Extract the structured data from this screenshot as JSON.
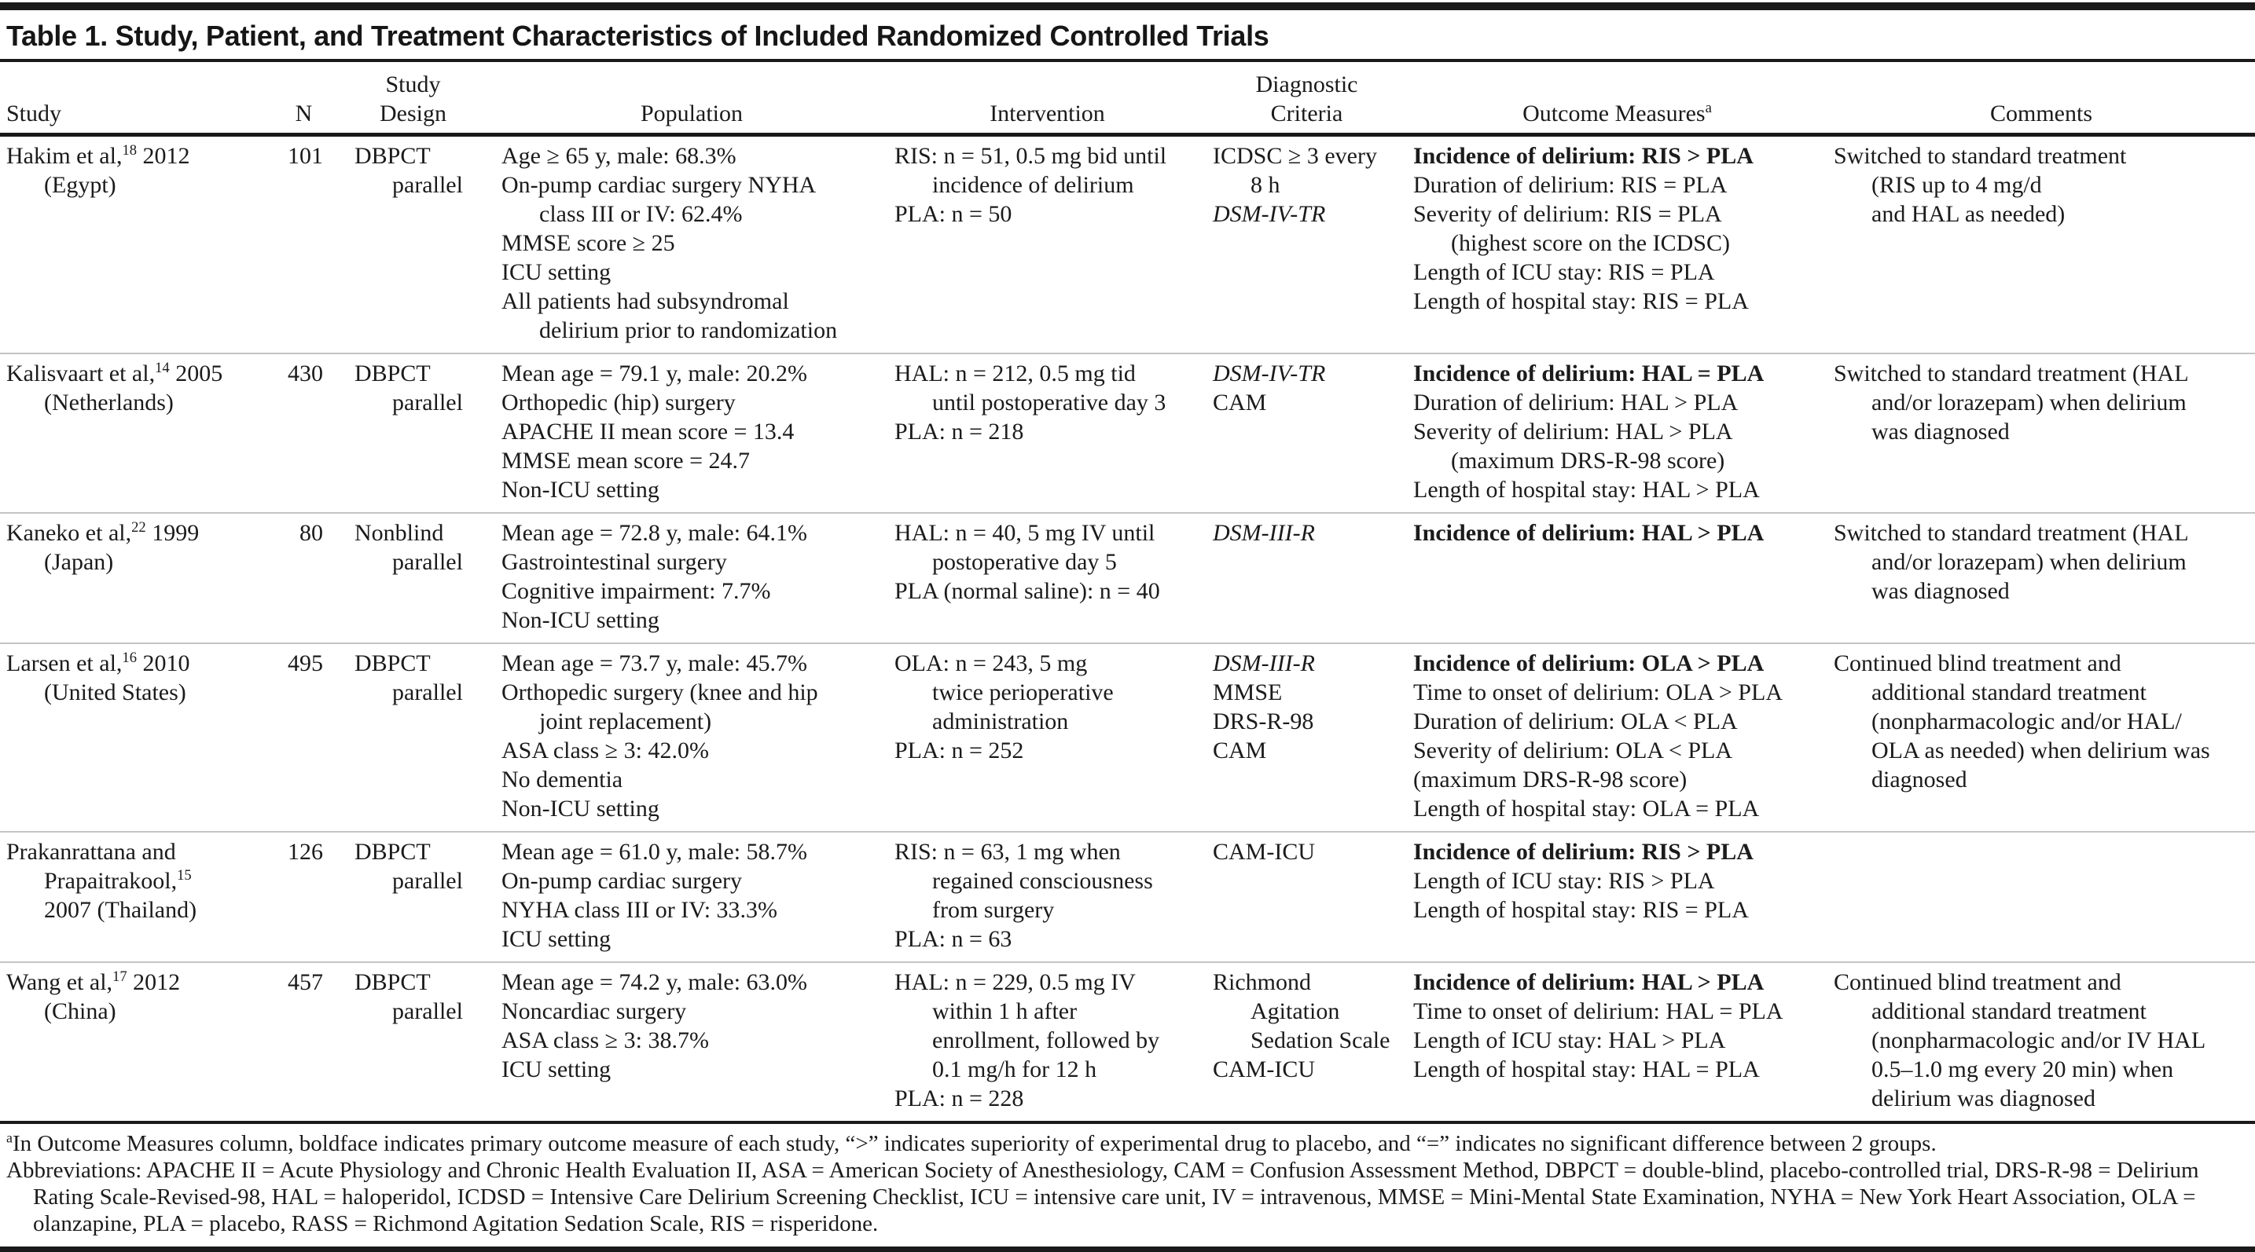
{
  "title": "Table 1. Study, Patient, and Treatment Characteristics of Included Randomized Controlled Trials",
  "headers": {
    "study": {
      "l2": "Study"
    },
    "n": {
      "l2": "N"
    },
    "design": {
      "l1": "Study",
      "l2": "Design"
    },
    "population": {
      "l2": "Population"
    },
    "intervention": {
      "l2": "Intervention"
    },
    "diagnostic": {
      "l1": "Diagnostic",
      "l2": "Criteria"
    },
    "outcomes": {
      "l2": "Outcome Measures^a^"
    },
    "comments": {
      "l2": "Comments"
    }
  },
  "rows": [
    {
      "study": [
        {
          "t": "Hakim et al,^18^ 2012",
          "i": 0
        },
        {
          "t": "(Egypt)",
          "i": 1
        }
      ],
      "n": "101",
      "design": [
        {
          "t": "DBPCT",
          "i": 0
        },
        {
          "t": "parallel",
          "i": 1
        }
      ],
      "population": [
        {
          "t": "Age ≥ 65 y, male: 68.3%",
          "i": 0
        },
        {
          "t": "On-pump cardiac surgery NYHA",
          "i": 0
        },
        {
          "t": "class III or IV: 62.4%",
          "i": 1
        },
        {
          "t": "MMSE score ≥ 25",
          "i": 0
        },
        {
          "t": "ICU setting",
          "i": 0
        },
        {
          "t": "All patients had subsyndromal",
          "i": 0
        },
        {
          "t": "delirium prior to randomization",
          "i": 1
        }
      ],
      "intervention": [
        {
          "t": "RIS: n = 51, 0.5 mg bid until",
          "i": 0
        },
        {
          "t": "incidence of delirium",
          "i": 1
        },
        {
          "t": "PLA: n = 50",
          "i": 0
        }
      ],
      "diagnostic": [
        {
          "t": "ICDSC ≥ 3 every",
          "i": 0
        },
        {
          "t": "8 h",
          "i": 1
        },
        {
          "t": "DSM-IV-TR",
          "i": 0,
          "italic": true
        }
      ],
      "outcomes": [
        {
          "t": "Incidence of delirium: RIS > PLA",
          "i": 0,
          "bold": true
        },
        {
          "t": "Duration of delirium: RIS = PLA",
          "i": 0
        },
        {
          "t": "Severity of delirium: RIS = PLA",
          "i": 0
        },
        {
          "t": "(highest score on the ICDSC)",
          "i": 1
        },
        {
          "t": "Length of ICU stay: RIS = PLA",
          "i": 0
        },
        {
          "t": "Length of hospital stay: RIS = PLA",
          "i": 0
        }
      ],
      "comments": [
        {
          "t": "Switched to standard treatment",
          "i": 0
        },
        {
          "t": "(RIS up to 4 mg/d",
          "i": 1
        },
        {
          "t": "and HAL as needed)",
          "i": 1
        }
      ]
    },
    {
      "study": [
        {
          "t": "Kalisvaart et al,^14^ 2005",
          "i": 0
        },
        {
          "t": "(Netherlands)",
          "i": 1
        }
      ],
      "n": "430",
      "design": [
        {
          "t": "DBPCT",
          "i": 0
        },
        {
          "t": "parallel",
          "i": 1
        }
      ],
      "population": [
        {
          "t": "Mean age = 79.1 y, male: 20.2%",
          "i": 0
        },
        {
          "t": "Orthopedic (hip) surgery",
          "i": 0
        },
        {
          "t": "APACHE II mean score = 13.4",
          "i": 0
        },
        {
          "t": "MMSE mean score = 24.7",
          "i": 0
        },
        {
          "t": "Non-ICU setting",
          "i": 0
        }
      ],
      "intervention": [
        {
          "t": "HAL: n = 212, 0.5 mg tid",
          "i": 0
        },
        {
          "t": "until postoperative day 3",
          "i": 1
        },
        {
          "t": "PLA: n = 218",
          "i": 0
        }
      ],
      "diagnostic": [
        {
          "t": "DSM-IV-TR",
          "i": 0,
          "italic": true
        },
        {
          "t": "CAM",
          "i": 0
        }
      ],
      "outcomes": [
        {
          "t": "Incidence of delirium: HAL = PLA",
          "i": 0,
          "bold": true
        },
        {
          "t": "Duration of delirium: HAL > PLA",
          "i": 0
        },
        {
          "t": "Severity of delirium: HAL > PLA",
          "i": 0
        },
        {
          "t": "(maximum DRS-R-98 score)",
          "i": 1
        },
        {
          "t": "Length of hospital stay: HAL > PLA",
          "i": 0
        }
      ],
      "comments": [
        {
          "t": "Switched to standard treatment (HAL",
          "i": 0
        },
        {
          "t": "and/or lorazepam) when delirium",
          "i": 1
        },
        {
          "t": "was diagnosed",
          "i": 1
        }
      ]
    },
    {
      "study": [
        {
          "t": "Kaneko et al,^22^ 1999",
          "i": 0
        },
        {
          "t": "(Japan)",
          "i": 1
        }
      ],
      "n": "80",
      "design": [
        {
          "t": "Nonblind",
          "i": 0
        },
        {
          "t": "parallel",
          "i": 1
        }
      ],
      "population": [
        {
          "t": "Mean age = 72.8 y, male: 64.1%",
          "i": 0
        },
        {
          "t": "Gastrointestinal surgery",
          "i": 0
        },
        {
          "t": "Cognitive impairment: 7.7%",
          "i": 0
        },
        {
          "t": "Non-ICU setting",
          "i": 0
        }
      ],
      "intervention": [
        {
          "t": "HAL: n = 40, 5 mg IV until",
          "i": 0
        },
        {
          "t": "postoperative day 5",
          "i": 1
        },
        {
          "t": "PLA (normal saline): n = 40",
          "i": 0
        }
      ],
      "diagnostic": [
        {
          "t": "DSM-III-R",
          "i": 0,
          "italic": true
        }
      ],
      "outcomes": [
        {
          "t": "Incidence of delirium: HAL > PLA",
          "i": 0,
          "bold": true
        }
      ],
      "comments": [
        {
          "t": "Switched to standard treatment (HAL",
          "i": 0
        },
        {
          "t": "and/or lorazepam) when delirium",
          "i": 1
        },
        {
          "t": "was diagnosed",
          "i": 1
        }
      ]
    },
    {
      "study": [
        {
          "t": "Larsen et al,^16^ 2010",
          "i": 0
        },
        {
          "t": "(United States)",
          "i": 1
        }
      ],
      "n": "495",
      "design": [
        {
          "t": "DBPCT",
          "i": 0
        },
        {
          "t": "parallel",
          "i": 1
        }
      ],
      "population": [
        {
          "t": "Mean age = 73.7 y, male: 45.7%",
          "i": 0
        },
        {
          "t": "Orthopedic surgery (knee and hip",
          "i": 0
        },
        {
          "t": "joint replacement)",
          "i": 1
        },
        {
          "t": "ASA class ≥ 3: 42.0%",
          "i": 0
        },
        {
          "t": "No dementia",
          "i": 0
        },
        {
          "t": "Non-ICU setting",
          "i": 0
        }
      ],
      "intervention": [
        {
          "t": "OLA: n = 243, 5 mg",
          "i": 0
        },
        {
          "t": "twice perioperative",
          "i": 1
        },
        {
          "t": "administration",
          "i": 1
        },
        {
          "t": "PLA: n = 252",
          "i": 0
        }
      ],
      "diagnostic": [
        {
          "t": "DSM-III-R",
          "i": 0,
          "italic": true
        },
        {
          "t": "MMSE",
          "i": 0
        },
        {
          "t": "DRS-R-98",
          "i": 0
        },
        {
          "t": "CAM",
          "i": 0
        }
      ],
      "outcomes": [
        {
          "t": "Incidence of delirium: OLA > PLA",
          "i": 0,
          "bold": true
        },
        {
          "t": "Time to onset of delirium: OLA > PLA",
          "i": 0
        },
        {
          "t": "Duration of delirium: OLA < PLA",
          "i": 0
        },
        {
          "t": "Severity of delirium: OLA < PLA",
          "i": 0
        },
        {
          "t": "(maximum DRS-R-98 score)",
          "i": 0
        },
        {
          "t": "Length of hospital stay: OLA = PLA",
          "i": 0
        }
      ],
      "comments": [
        {
          "t": "Continued blind treatment and",
          "i": 0
        },
        {
          "t": "additional standard treatment",
          "i": 1
        },
        {
          "t": "(nonpharmacologic and/or HAL/",
          "i": 1
        },
        {
          "t": "OLA as needed) when delirium was",
          "i": 1
        },
        {
          "t": "diagnosed",
          "i": 1
        }
      ]
    },
    {
      "study": [
        {
          "t": "Prakanrattana and",
          "i": 0
        },
        {
          "t": "Prapaitrakool,^15^",
          "i": 1
        },
        {
          "t": "2007 (Thailand)",
          "i": 1
        }
      ],
      "n": "126",
      "design": [
        {
          "t": "DBPCT",
          "i": 0
        },
        {
          "t": "parallel",
          "i": 1
        }
      ],
      "population": [
        {
          "t": "Mean age = 61.0 y, male: 58.7%",
          "i": 0
        },
        {
          "t": "On-pump cardiac surgery",
          "i": 0
        },
        {
          "t": "NYHA class III or IV: 33.3%",
          "i": 0
        },
        {
          "t": "ICU setting",
          "i": 0
        }
      ],
      "intervention": [
        {
          "t": "RIS: n = 63, 1 mg when",
          "i": 0
        },
        {
          "t": "regained consciousness",
          "i": 1
        },
        {
          "t": "from surgery",
          "i": 1
        },
        {
          "t": "PLA: n = 63",
          "i": 0
        }
      ],
      "diagnostic": [
        {
          "t": "CAM-ICU",
          "i": 0
        }
      ],
      "outcomes": [
        {
          "t": "Incidence of delirium: RIS > PLA",
          "i": 0,
          "bold": true
        },
        {
          "t": "Length of ICU stay: RIS > PLA",
          "i": 0
        },
        {
          "t": "Length of hospital stay: RIS = PLA",
          "i": 0
        }
      ],
      "comments": []
    },
    {
      "study": [
        {
          "t": "Wang et al,^17^ 2012",
          "i": 0
        },
        {
          "t": "(China)",
          "i": 1
        }
      ],
      "n": "457",
      "design": [
        {
          "t": "DBPCT",
          "i": 0
        },
        {
          "t": "parallel",
          "i": 1
        }
      ],
      "population": [
        {
          "t": "Mean age = 74.2 y, male: 63.0%",
          "i": 0
        },
        {
          "t": "Noncardiac surgery",
          "i": 0
        },
        {
          "t": "ASA class ≥ 3: 38.7%",
          "i": 0
        },
        {
          "t": "ICU setting",
          "i": 0
        }
      ],
      "intervention": [
        {
          "t": "HAL: n = 229, 0.5 mg IV",
          "i": 0
        },
        {
          "t": "within 1 h after",
          "i": 1
        },
        {
          "t": "enrollment, followed by",
          "i": 1
        },
        {
          "t": "0.1 mg/h for 12 h",
          "i": 1
        },
        {
          "t": "PLA: n = 228",
          "i": 0
        }
      ],
      "diagnostic": [
        {
          "t": "Richmond",
          "i": 0
        },
        {
          "t": "Agitation",
          "i": 1
        },
        {
          "t": "Sedation Scale",
          "i": 1
        },
        {
          "t": "CAM-ICU",
          "i": 0
        }
      ],
      "outcomes": [
        {
          "t": "Incidence of delirium: HAL > PLA",
          "i": 0,
          "bold": true
        },
        {
          "t": "Time to onset of delirium: HAL = PLA",
          "i": 0
        },
        {
          "t": "Length of ICU stay: HAL > PLA",
          "i": 0
        },
        {
          "t": "Length of hospital stay: HAL = PLA",
          "i": 0
        }
      ],
      "comments": [
        {
          "t": "Continued blind treatment and",
          "i": 0
        },
        {
          "t": "additional standard treatment",
          "i": 1
        },
        {
          "t": "(nonpharmacologic and/or IV HAL",
          "i": 1
        },
        {
          "t": "0.5–1.0 mg every 20 min) when",
          "i": 1
        },
        {
          "t": "delirium was diagnosed",
          "i": 1
        }
      ]
    }
  ],
  "footnotes": {
    "outcome_note": "^a^In Outcome Measures column, boldface indicates primary outcome measure of each study, “>” indicates superiority of experimental drug to placebo, and “=” indicates no significant difference between 2 groups.",
    "abbreviations": "Abbreviations: APACHE II = Acute Physiology and Chronic Health Evaluation II, ASA = American Society of Anesthesiology, CAM = Confusion Assessment Method, DBPCT = double-blind, placebo-controlled trial, DRS-R-98 = Delirium Rating Scale-Revised-98, HAL = haloperidol, ICDSD = Intensive Care Delirium Screening Checklist, ICU = intensive care unit, IV = intravenous, MMSE = Mini-Mental State Examination, NYHA = New York Heart Association, OLA = olanzapine, PLA = placebo, RASS = Richmond Agitation Sedation Scale, RIS = risperidone."
  }
}
